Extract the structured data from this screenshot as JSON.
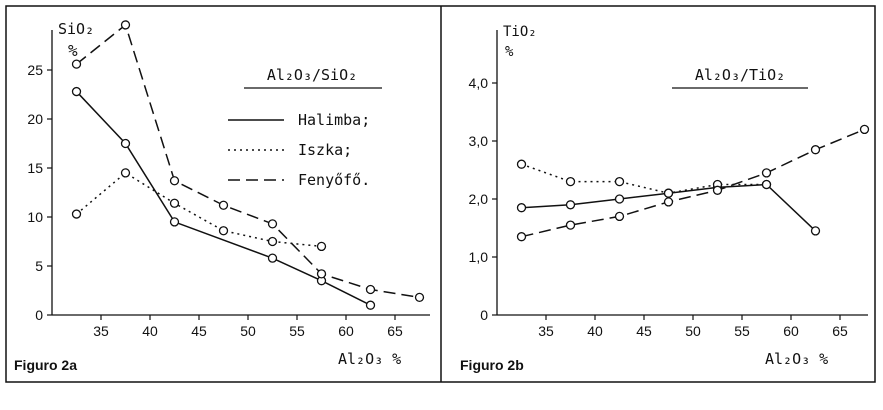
{
  "colors": {
    "ink": "#111111",
    "background": "#ffffff"
  },
  "chart_data": [
    {
      "type": "line",
      "figure_label": "Figuro 2a",
      "title": "Al₂O₃/SiO₂",
      "ylabel": "SiO₂",
      "yunit": "%",
      "xlabel": "Al₂O₃ %",
      "xlim": [
        30,
        70
      ],
      "ylim": [
        0,
        30
      ],
      "xticks": [
        "35",
        "40",
        "45",
        "50",
        "55",
        "60",
        "65"
      ],
      "yticks": [
        "0",
        "5",
        "10",
        "15",
        "20",
        "25"
      ],
      "grid": false,
      "legend_position": "top-right",
      "series": [
        {
          "name": "Halimba;",
          "style": "solid",
          "x": [
            32.5,
            37.5,
            42.5,
            52.5,
            57.5,
            62.5
          ],
          "y": [
            22.8,
            17.5,
            9.5,
            5.8,
            3.5,
            1.0
          ]
        },
        {
          "name": "Iszka;",
          "style": "dotted",
          "x": [
            32.5,
            37.5,
            42.5,
            47.5,
            52.5,
            57.5
          ],
          "y": [
            10.3,
            14.5,
            11.4,
            8.6,
            7.5,
            7.0
          ]
        },
        {
          "name": "Fenyőfő.",
          "style": "dashed",
          "x": [
            32.5,
            37.5,
            42.5,
            47.5,
            52.5,
            57.5,
            62.5,
            67.5
          ],
          "y": [
            25.6,
            29.6,
            13.7,
            11.2,
            9.3,
            4.2,
            2.6,
            1.8
          ]
        }
      ]
    },
    {
      "type": "line",
      "figure_label": "Figuro 2b",
      "title": "Al₂O₃/TiO₂",
      "ylabel": "TiO₂",
      "yunit": "%",
      "xlabel": "Al₂O₃ %",
      "xlim": [
        30,
        70
      ],
      "ylim": [
        0,
        5
      ],
      "xticks": [
        "35",
        "40",
        "45",
        "50",
        "55",
        "60",
        "65"
      ],
      "yticks": [
        "0",
        "1,0",
        "2,0",
        "3,0",
        "4,0"
      ],
      "grid": false,
      "series": [
        {
          "name": "Halimba;",
          "style": "solid",
          "x": [
            32.5,
            37.5,
            42.5,
            47.5,
            52.5,
            57.5,
            62.5
          ],
          "y": [
            1.85,
            1.9,
            2.0,
            2.1,
            2.2,
            2.25,
            1.45
          ]
        },
        {
          "name": "Iszka;",
          "style": "dotted",
          "x": [
            32.5,
            37.5,
            42.5,
            47.5,
            52.5,
            57.5
          ],
          "y": [
            2.6,
            2.3,
            2.3,
            2.1,
            2.25,
            2.25
          ]
        },
        {
          "name": "Fenyőfő.",
          "style": "dashed",
          "x": [
            32.5,
            37.5,
            42.5,
            47.5,
            52.5,
            57.5,
            62.5,
            67.5
          ],
          "y": [
            1.35,
            1.55,
            1.7,
            1.95,
            2.15,
            2.45,
            2.85,
            3.2
          ]
        }
      ]
    }
  ]
}
